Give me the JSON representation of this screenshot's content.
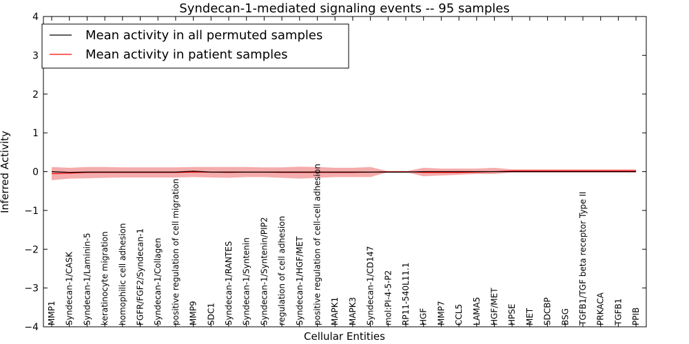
{
  "chart_data": {
    "type": "line",
    "title": "Syndecan-1-mediated signaling events -- 95 samples",
    "xlabel": "Cellular Entities",
    "ylabel": "Inferred Activity",
    "ylim": [
      -4,
      4
    ],
    "yticks": [
      "−4",
      "−3",
      "−2",
      "−1",
      "0",
      "1",
      "2",
      "3",
      "4"
    ],
    "ytick_values": [
      -4,
      -3,
      -2,
      -1,
      0,
      1,
      2,
      3,
      4
    ],
    "categories": [
      "MMP1",
      "Syndecan-1/CASK",
      "Syndecan-1/Laminin-5",
      "keratinocyte migration",
      "homophilic cell adhesion",
      "FGFR/FGF2/Syndecan-1",
      "Syndecan-1/Collagen",
      "positive regulation of cell migration",
      "MMP9",
      "SDC1",
      "Syndecan-1/RANTES",
      "Syndecan-1/Syntenin",
      "Syndecan-1/Syntenin/PIP2",
      "regulation of cell adhesion",
      "Syndecan-1/HGF/MET",
      "positive regulation of cell-cell adhesion",
      "MAPK1",
      "MAPK3",
      "Syndecan-1/CD147",
      "mol:PI-4-5-P2",
      "RP11-540L11.1",
      "HGF",
      "MMP7",
      "CCL5",
      "LAMA5",
      "HGF/MET",
      "HPSE",
      "MET",
      "SDCBP",
      "BSG",
      "TGFB1/TGF beta receptor Type II",
      "PRKACA",
      "TGFB1",
      "PPIB"
    ],
    "legend_position": "top-left",
    "series": [
      {
        "name": "Mean activity in all permuted samples",
        "color": "#000000",
        "values": [
          0.0,
          -0.02,
          -0.01,
          -0.01,
          -0.01,
          -0.01,
          -0.01,
          -0.01,
          0.01,
          -0.01,
          -0.01,
          -0.01,
          -0.01,
          -0.01,
          -0.01,
          -0.01,
          -0.01,
          -0.01,
          -0.01,
          -0.01,
          -0.01,
          0.0,
          0.0,
          0.0,
          0.0,
          0.0,
          0.0,
          0.0,
          0.0,
          0.0,
          0.0,
          0.0,
          0.0,
          0.0
        ],
        "band_upper": [
          0.02,
          0.01,
          0.01,
          0.01,
          0.01,
          0.01,
          0.01,
          0.01,
          0.02,
          0.01,
          0.01,
          0.01,
          0.01,
          0.01,
          0.01,
          0.01,
          0.01,
          0.01,
          0.01,
          0.01,
          0.01,
          0.01,
          0.01,
          0.01,
          0.01,
          0.01,
          0.01,
          0.01,
          0.01,
          0.01,
          0.01,
          0.01,
          0.01,
          0.01
        ],
        "band_lower": [
          -0.04,
          -0.05,
          -0.04,
          -0.04,
          -0.04,
          -0.04,
          -0.04,
          -0.04,
          -0.03,
          -0.04,
          -0.04,
          -0.04,
          -0.04,
          -0.04,
          -0.04,
          -0.04,
          -0.04,
          -0.04,
          -0.04,
          -0.04,
          -0.04,
          -0.03,
          -0.03,
          -0.03,
          -0.03,
          -0.03,
          -0.03,
          -0.03,
          -0.03,
          -0.03,
          -0.03,
          -0.03,
          -0.03,
          -0.03
        ]
      },
      {
        "name": "Mean activity in patient samples",
        "color": "#ff0000",
        "values": [
          -0.05,
          -0.04,
          -0.02,
          -0.02,
          -0.02,
          -0.02,
          -0.02,
          -0.02,
          -0.01,
          -0.01,
          -0.02,
          -0.01,
          -0.01,
          -0.02,
          -0.02,
          -0.02,
          -0.02,
          -0.02,
          -0.01,
          0.0,
          0.0,
          -0.02,
          -0.02,
          -0.02,
          -0.01,
          0.0,
          0.02,
          0.02,
          0.02,
          0.02,
          0.02,
          0.02,
          0.02,
          0.02
        ],
        "band_upper": [
          0.12,
          0.1,
          0.12,
          0.12,
          0.11,
          0.11,
          0.11,
          0.11,
          0.12,
          0.12,
          0.12,
          0.12,
          0.11,
          0.11,
          0.13,
          0.12,
          0.1,
          0.1,
          0.12,
          0.01,
          0.01,
          0.1,
          0.08,
          0.08,
          0.08,
          0.1,
          0.06,
          0.06,
          0.06,
          0.06,
          0.06,
          0.06,
          0.06,
          0.06
        ],
        "band_lower": [
          -0.22,
          -0.18,
          -0.17,
          -0.16,
          -0.15,
          -0.15,
          -0.15,
          -0.15,
          -0.14,
          -0.15,
          -0.16,
          -0.14,
          -0.14,
          -0.16,
          -0.18,
          -0.16,
          -0.14,
          -0.14,
          -0.14,
          -0.01,
          -0.01,
          -0.12,
          -0.1,
          -0.08,
          -0.06,
          -0.06,
          -0.02,
          -0.02,
          -0.02,
          -0.02,
          -0.02,
          -0.02,
          -0.02,
          -0.02
        ]
      }
    ]
  }
}
